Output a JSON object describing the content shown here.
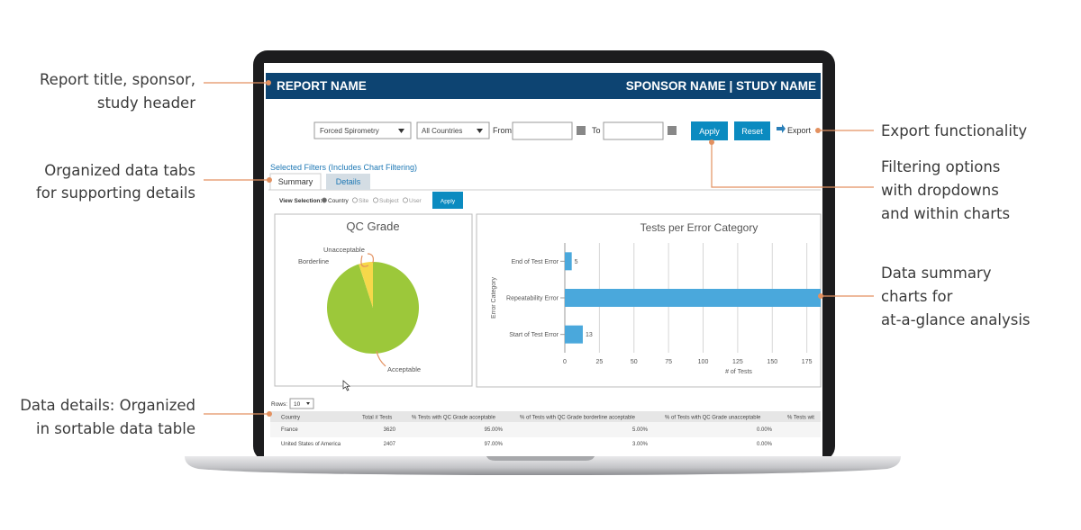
{
  "annotations": [
    {
      "lines": [
        "Report title, sponsor,",
        "study header"
      ]
    },
    {
      "lines": [
        "Organized data tabs",
        "for supporting details"
      ]
    },
    {
      "lines": [
        "Data details: Organized",
        "in sortable data table"
      ]
    },
    {
      "lines": [
        "Export functionality"
      ]
    },
    {
      "lines": [
        "Filtering options",
        "with dropdowns",
        "and within charts"
      ]
    },
    {
      "lines": [
        "Data summary",
        "charts for",
        "at-a-glance analysis"
      ]
    }
  ],
  "header": {
    "report_name": "REPORT NAME",
    "sponsor_study": "SPONSOR NAME | STUDY NAME"
  },
  "filters": {
    "test_type": "Forced Spirometry",
    "country": "All Countries",
    "from": "From",
    "to": "To",
    "apply": "Apply",
    "reset": "Reset",
    "export": "Export"
  },
  "selected_filters": "Selected Filters (Includes Chart Filtering)",
  "tabs": [
    "Summary",
    "Details"
  ],
  "view_selection": {
    "label": "View Selection:",
    "options": [
      "Country",
      "Site",
      "Subject",
      "User"
    ],
    "apply": "Apply"
  },
  "chart_data": [
    {
      "type": "pie",
      "title": "QC Grade",
      "categories": [
        "Acceptable",
        "Borderline",
        "Unacceptable"
      ],
      "values": [
        95,
        5,
        0
      ],
      "colors": [
        "#9cc83a",
        "#f6d84a",
        "#e8573c"
      ]
    },
    {
      "type": "bar",
      "orientation": "horizontal",
      "title": "Tests per Error Category",
      "y_label": "Error Category",
      "x_label": "# of Tests",
      "categories": [
        "End of Test Error",
        "Repeatability Error",
        "Start of Test Error"
      ],
      "values": [
        5,
        185,
        13
      ],
      "color": "#4aa8dc",
      "xlim": [
        0,
        185
      ],
      "xticks": [
        0,
        25,
        50,
        75,
        100,
        125,
        150,
        175
      ],
      "grid": true
    }
  ],
  "table": {
    "rows_label": "Rows:",
    "page_size": "10",
    "columns": [
      "Country",
      "Total # Tests",
      "% Tests with QC Grade acceptable",
      "% of Tests with QC Grade borderline acceptable",
      "% of Tests with QC Grade unacceptable",
      "% Tests wit"
    ],
    "rows": [
      [
        "France",
        "3620",
        "95.00%",
        "5.00%",
        "0.00%"
      ],
      [
        "United States of America",
        "2407",
        "97.00%",
        "3.00%",
        "0.00%"
      ]
    ]
  }
}
